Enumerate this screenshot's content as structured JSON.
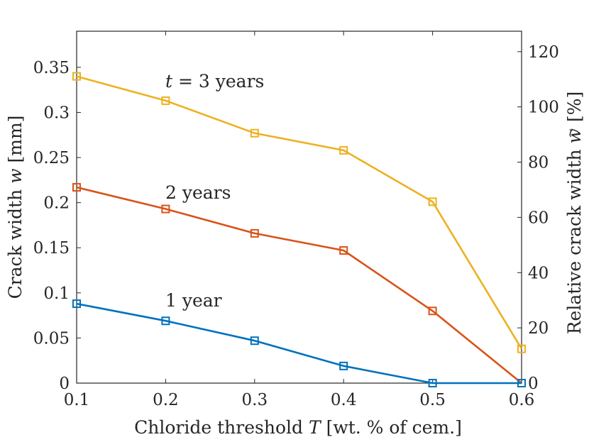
{
  "chart_data": {
    "type": "line",
    "xlabel": "Chloride threshold T [wt. % of cem.]",
    "ylabel": "Crack width w [mm]",
    "ylabel_right": "Relative crack width w̃ [%]",
    "xlim": [
      0.1,
      0.6
    ],
    "ylim": [
      0,
      0.39
    ],
    "ylim_right": [
      0,
      127.4
    ],
    "x_ticks": [
      "0.1",
      "0.2",
      "0.3",
      "0.4",
      "0.5",
      "0.6"
    ],
    "y_ticks": [
      "0",
      "0.05",
      "0.1",
      "0.15",
      "0.2",
      "0.25",
      "0.3",
      "0.35"
    ],
    "y_right_ticks": [
      "0",
      "20",
      "40",
      "60",
      "80",
      "100",
      "120"
    ],
    "grid": false,
    "x": [
      0.1,
      0.2,
      0.3,
      0.4,
      0.5,
      0.6
    ],
    "series": [
      {
        "name": "t = 3 years",
        "color": "#EDB120",
        "values": [
          0.34,
          0.313,
          0.277,
          0.258,
          0.201,
          0.038
        ]
      },
      {
        "name": "2 years",
        "color": "#D95319",
        "values": [
          0.217,
          0.193,
          0.166,
          0.147,
          0.08,
          0.0
        ]
      },
      {
        "name": "1 year",
        "color": "#0072BD",
        "values": [
          0.088,
          0.069,
          0.047,
          0.019,
          0.0,
          0.0
        ]
      }
    ],
    "annotations": [
      {
        "text": "t = 3 years",
        "x": 0.2,
        "y": 0.325
      },
      {
        "text": "2 years",
        "x": 0.2,
        "y": 0.206
      },
      {
        "text": "1 year",
        "x": 0.2,
        "y": 0.08
      }
    ]
  }
}
